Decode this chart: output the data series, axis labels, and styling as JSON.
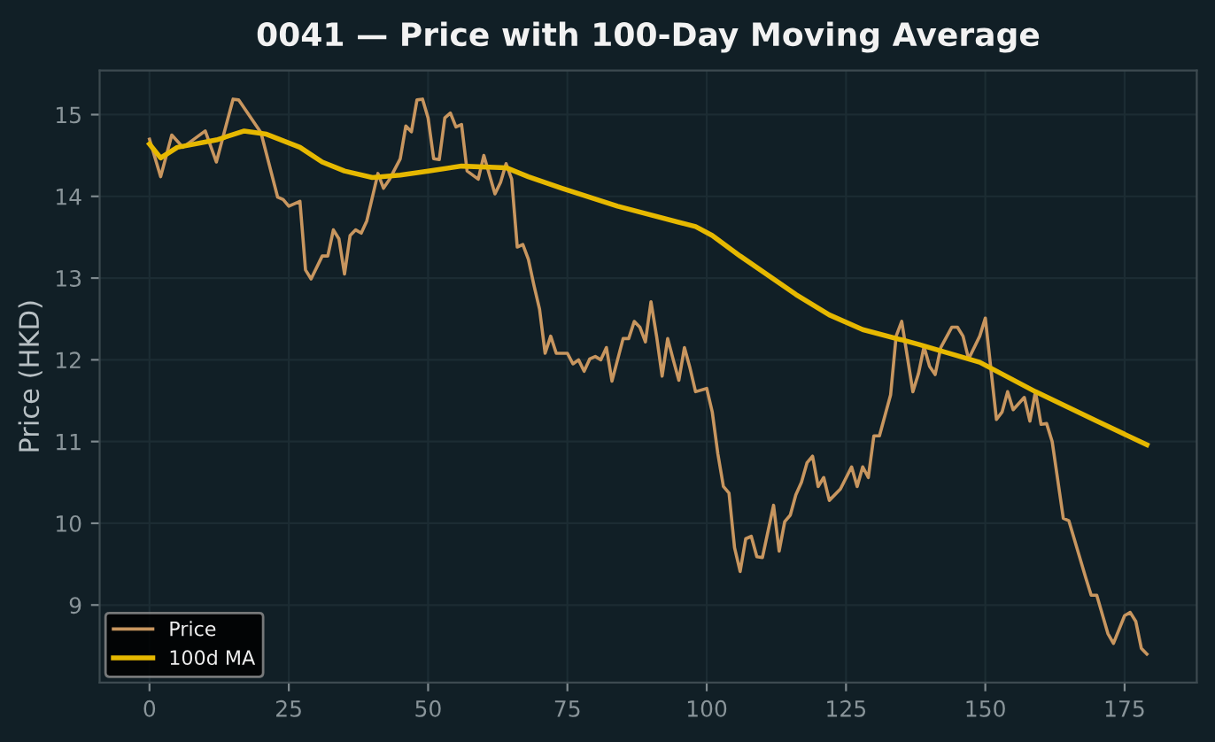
{
  "chart_data": {
    "type": "line",
    "title": "0041 — Price with 100-Day Moving Average",
    "ylabel": "Price (HKD)",
    "xlim": [
      -8.95,
      187.95
    ],
    "ylim": [
      8.05,
      15.54
    ],
    "xticks": [
      0,
      25,
      50,
      75,
      100,
      125,
      150,
      175
    ],
    "yticks": [
      9,
      10,
      11,
      12,
      13,
      14,
      15
    ],
    "grid": true,
    "legend": "bottom left",
    "line_style": "solid",
    "marker": "none",
    "series": [
      {
        "name": "Price",
        "color": "#c8965f",
        "x": [
          0,
          2,
          4,
          6,
          8,
          10,
          12,
          15,
          16,
          20,
          23,
          24,
          25,
          27,
          28,
          29,
          31,
          32,
          33,
          34,
          35,
          36,
          37,
          38,
          39,
          41,
          42,
          43,
          45,
          46,
          47,
          48,
          49,
          50,
          51,
          52,
          53,
          54,
          55,
          56,
          57,
          59,
          60,
          62,
          63,
          64,
          65,
          66,
          67,
          68,
          69,
          70,
          71,
          72,
          73,
          75,
          76,
          77,
          78,
          79,
          80,
          81,
          82,
          83,
          85,
          86,
          87,
          88,
          89,
          90,
          91,
          92,
          93,
          94,
          95,
          96,
          97,
          98,
          100,
          101,
          102,
          103,
          104,
          105,
          106,
          107,
          108,
          109,
          110,
          112,
          113,
          114,
          115,
          116,
          117,
          118,
          119,
          120,
          121,
          122,
          124,
          126,
          127,
          128,
          129,
          130,
          131,
          133,
          134,
          135,
          137,
          138,
          139,
          140,
          141,
          142,
          144,
          145,
          146,
          147,
          149,
          150,
          152,
          153,
          154,
          155,
          157,
          158,
          159,
          160,
          161,
          162,
          164,
          165,
          168,
          169,
          170,
          172,
          173,
          175,
          176,
          177,
          178,
          179
        ],
        "values": [
          14.7,
          14.24,
          14.75,
          14.6,
          14.7,
          14.8,
          14.42,
          15.19,
          15.18,
          14.78,
          13.99,
          13.96,
          13.88,
          13.94,
          13.1,
          12.99,
          13.27,
          13.27,
          13.59,
          13.48,
          13.05,
          13.52,
          13.59,
          13.55,
          13.7,
          14.28,
          14.1,
          14.2,
          14.46,
          14.86,
          14.79,
          15.18,
          15.19,
          14.96,
          14.46,
          14.45,
          14.96,
          15.02,
          14.85,
          14.88,
          14.31,
          14.21,
          14.5,
          14.03,
          14.17,
          14.4,
          14.21,
          13.38,
          13.41,
          13.23,
          12.91,
          12.62,
          12.08,
          12.29,
          12.08,
          12.08,
          11.95,
          12.0,
          11.86,
          12.01,
          12.04,
          12.0,
          12.15,
          11.74,
          12.26,
          12.26,
          12.47,
          12.4,
          12.22,
          12.71,
          12.29,
          11.8,
          12.26,
          12.0,
          11.75,
          12.15,
          11.9,
          11.61,
          11.65,
          11.36,
          10.85,
          10.45,
          10.37,
          9.7,
          9.41,
          9.81,
          9.84,
          9.59,
          9.58,
          10.22,
          9.66,
          10.02,
          10.1,
          10.35,
          10.5,
          10.74,
          10.82,
          10.45,
          10.56,
          10.28,
          10.42,
          10.69,
          10.45,
          10.69,
          10.56,
          11.07,
          11.07,
          11.57,
          12.29,
          12.47,
          11.61,
          11.83,
          12.16,
          11.92,
          11.82,
          12.15,
          12.4,
          12.4,
          12.29,
          12.01,
          12.29,
          12.51,
          11.27,
          11.36,
          11.61,
          11.39,
          11.54,
          11.25,
          11.61,
          11.21,
          11.22,
          11.0,
          10.06,
          10.03,
          9.34,
          9.12,
          9.12,
          8.65,
          8.53,
          8.87,
          8.91,
          8.8,
          8.47,
          8.4
        ]
      },
      {
        "name": "100d MA",
        "color": "#e6b800",
        "x": [
          0,
          2,
          5,
          12,
          17,
          21,
          27,
          31,
          35,
          40,
          45,
          50,
          56,
          64,
          68,
          74,
          84,
          98,
          101,
          106,
          116,
          122,
          128,
          138,
          149,
          159,
          170,
          179
        ],
        "values": [
          14.64,
          14.47,
          14.6,
          14.69,
          14.8,
          14.76,
          14.6,
          14.42,
          14.31,
          14.23,
          14.26,
          14.31,
          14.37,
          14.35,
          14.24,
          14.1,
          13.88,
          13.63,
          13.52,
          13.27,
          12.8,
          12.55,
          12.37,
          12.19,
          11.97,
          11.61,
          11.25,
          10.96
        ]
      }
    ]
  }
}
